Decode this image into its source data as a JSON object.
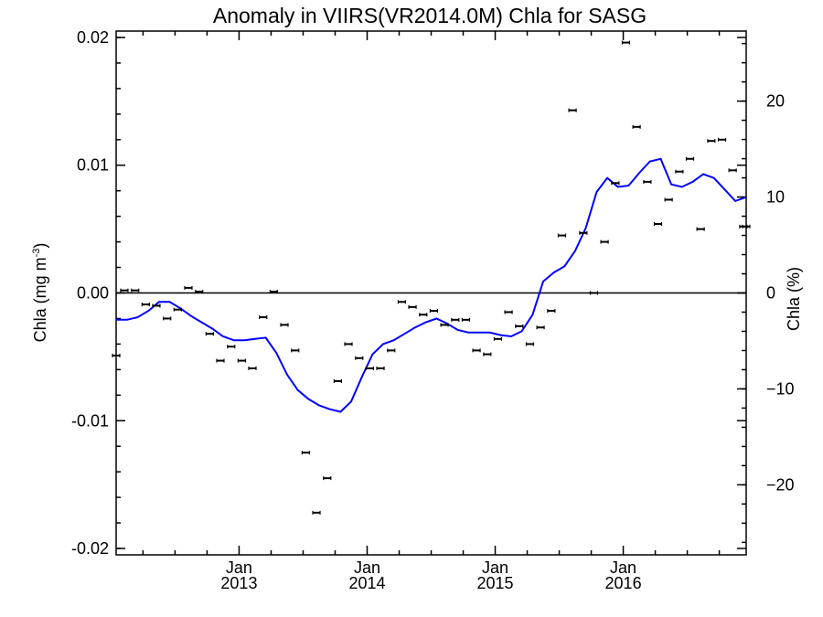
{
  "chart_data": {
    "type": "line",
    "title": "Anomaly in VIIRS(VR2014.0M) Chla for SASG",
    "ylabel_left_main": "Chla (mg m",
    "ylabel_left_sup": "-3",
    "ylabel_left_close": ")",
    "ylabel_right": "Chla (%)",
    "xlim": [
      2012.04,
      2016.96
    ],
    "ylim": [
      -0.0205,
      0.0205
    ],
    "ylim_right": [
      -27.3,
      27.3
    ],
    "grid": false,
    "x_ticks": [
      {
        "value": 2013.0,
        "month": "Jan",
        "year": "2013"
      },
      {
        "value": 2014.0,
        "month": "Jan",
        "year": "2014"
      },
      {
        "value": 2015.0,
        "month": "Jan",
        "year": "2015"
      },
      {
        "value": 2016.0,
        "month": "Jan",
        "year": "2016"
      }
    ],
    "y_ticks_left": [
      {
        "value": 0.02,
        "label": "0.02"
      },
      {
        "value": 0.01,
        "label": "0.01"
      },
      {
        "value": 0.0,
        "label": "0.00"
      },
      {
        "value": -0.01,
        "label": "-0.01"
      },
      {
        "value": -0.02,
        "label": "-0.02"
      }
    ],
    "y_ticks_right": [
      {
        "value": 20,
        "label": "20"
      },
      {
        "value": 10,
        "label": "10"
      },
      {
        "value": 0,
        "label": "0"
      },
      {
        "value": -10,
        "label": "−10"
      },
      {
        "value": -20,
        "label": "−20"
      }
    ],
    "zero_line": 0.0,
    "series": [
      {
        "kind": "line",
        "color": "#0000ff",
        "x": [
          2012.04,
          2012.125,
          2012.208,
          2012.292,
          2012.375,
          2012.458,
          2012.542,
          2012.625,
          2012.708,
          2012.792,
          2012.875,
          2012.958,
          2013.042,
          2013.125,
          2013.208,
          2013.292,
          2013.375,
          2013.458,
          2013.542,
          2013.625,
          2013.708,
          2013.792,
          2013.875,
          2013.958,
          2014.042,
          2014.125,
          2014.208,
          2014.292,
          2014.375,
          2014.458,
          2014.542,
          2014.625,
          2014.708,
          2014.792,
          2014.875,
          2014.958,
          2015.042,
          2015.125,
          2015.208,
          2015.292,
          2015.375,
          2015.458,
          2015.542,
          2015.625,
          2015.708,
          2015.792,
          2015.875,
          2015.958,
          2016.042,
          2016.125,
          2016.208,
          2016.292,
          2016.375,
          2016.458,
          2016.542,
          2016.625,
          2016.708,
          2016.792,
          2016.875,
          2016.96
        ],
        "y": [
          -0.0021,
          -0.0021,
          -0.0019,
          -0.0014,
          -0.0007,
          -0.0007,
          -0.0012,
          -0.0018,
          -0.0023,
          -0.0028,
          -0.0034,
          -0.0037,
          -0.0037,
          -0.0036,
          -0.0035,
          -0.0047,
          -0.0064,
          -0.0076,
          -0.0083,
          -0.0088,
          -0.0091,
          -0.0093,
          -0.0085,
          -0.0066,
          -0.0048,
          -0.004,
          -0.0037,
          -0.0032,
          -0.0027,
          -0.0023,
          -0.002,
          -0.0024,
          -0.0029,
          -0.0031,
          -0.0031,
          -0.0031,
          -0.0033,
          -0.0034,
          -0.003,
          -0.0017,
          0.0009,
          0.0016,
          0.0021,
          0.0033,
          0.0051,
          0.0079,
          0.009,
          0.0083,
          0.0084,
          0.0094,
          0.0103,
          0.0105,
          0.0085,
          0.0083,
          0.0087,
          0.0093,
          0.009,
          0.0081,
          0.0072,
          0.0075
        ]
      },
      {
        "kind": "points",
        "color": "#000000",
        "x": [
          2012.04,
          2012.104,
          2012.188,
          2012.271,
          2012.354,
          2012.438,
          2012.521,
          2012.604,
          2012.688,
          2012.771,
          2012.854,
          2012.938,
          2013.021,
          2013.104,
          2013.188,
          2013.271,
          2013.354,
          2013.438,
          2013.521,
          2013.604,
          2013.688,
          2013.771,
          2013.854,
          2013.938,
          2014.021,
          2014.104,
          2014.188,
          2014.271,
          2014.354,
          2014.438,
          2014.521,
          2014.604,
          2014.688,
          2014.771,
          2014.854,
          2014.938,
          2015.021,
          2015.104,
          2015.188,
          2015.271,
          2015.354,
          2015.438,
          2015.521,
          2015.604,
          2015.688,
          2015.771,
          2015.854,
          2015.938,
          2016.021,
          2016.104,
          2016.188,
          2016.271,
          2016.354,
          2016.438,
          2016.521,
          2016.604,
          2016.688,
          2016.771,
          2016.854,
          2016.938,
          2016.96
        ],
        "y": [
          -0.0049,
          0.0002,
          0.0002,
          -0.0009,
          -0.001,
          -0.002,
          -0.0013,
          0.0004,
          0.0001,
          -0.0032,
          -0.0053,
          -0.0042,
          -0.0053,
          -0.0059,
          -0.0019,
          0.0001,
          -0.0025,
          -0.0045,
          -0.0125,
          -0.0172,
          -0.0145,
          -0.0069,
          -0.004,
          -0.0051,
          -0.0059,
          -0.0059,
          -0.0045,
          -0.0007,
          -0.0011,
          -0.0017,
          -0.0014,
          -0.0025,
          -0.0021,
          -0.0021,
          -0.0045,
          -0.0048,
          -0.0036,
          -0.0015,
          -0.0026,
          -0.004,
          -0.0027,
          -0.0014,
          0.0045,
          0.0143,
          0.0047,
          0.0,
          0.004,
          0.0086,
          0.0196,
          0.013,
          0.0087,
          0.0054,
          0.0073,
          0.0095,
          0.0105,
          0.005,
          0.0119,
          0.012,
          0.0096,
          0.0052,
          0.0052
        ]
      }
    ]
  }
}
